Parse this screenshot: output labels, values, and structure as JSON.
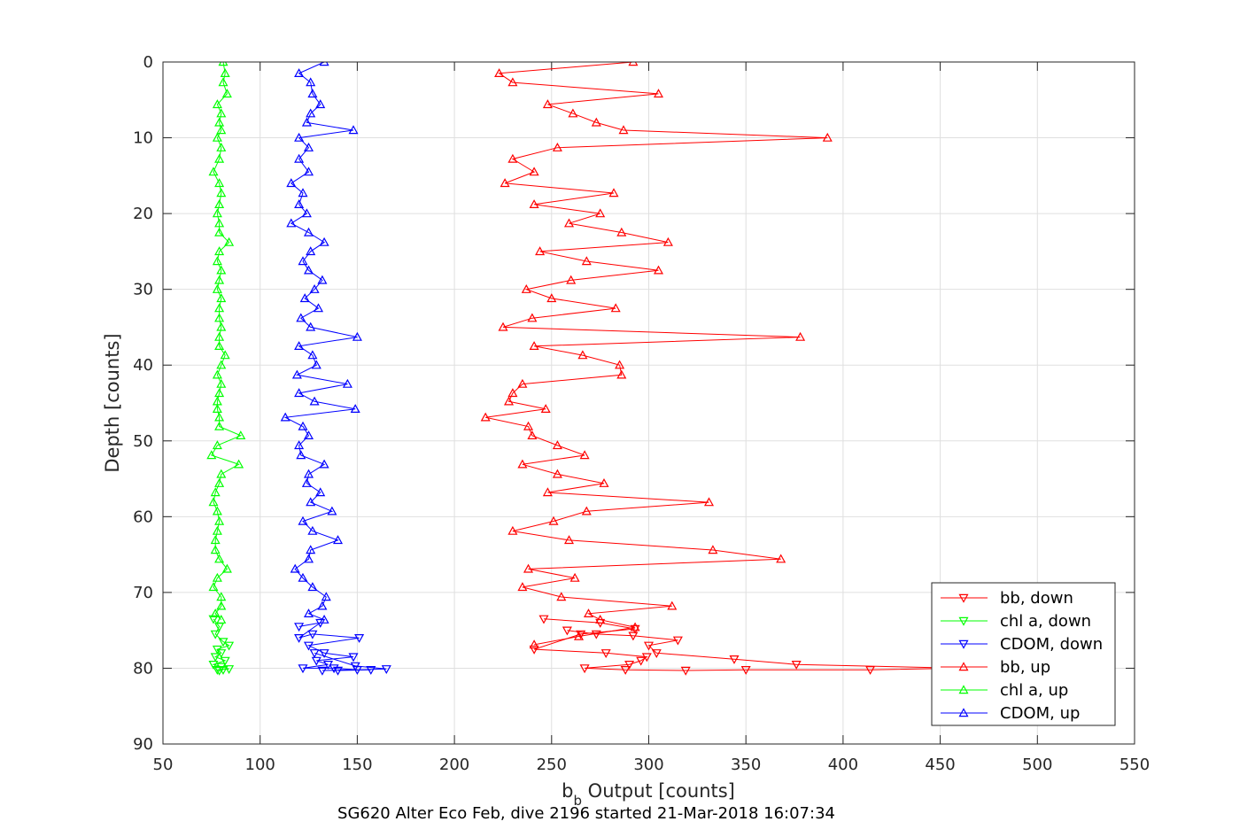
{
  "chart_data": {
    "type": "line",
    "xlabel_main": "b",
    "xlabel_sub": "b",
    "xlabel_rest": " Output [counts]",
    "ylabel": "Depth [counts]",
    "caption": "SG620 Alter Eco Feb, dive 2196 started 21-Mar-2018 16:07:34",
    "xlim": [
      50,
      550
    ],
    "ylim": [
      0,
      90
    ],
    "y_reversed": true,
    "grid": true,
    "legend_position": "bottom-right",
    "xticks": [
      "50",
      "100",
      "150",
      "200",
      "250",
      "300",
      "350",
      "400",
      "450",
      "500",
      "550"
    ],
    "yticks": [
      "0",
      "10",
      "20",
      "30",
      "40",
      "50",
      "60",
      "70",
      "80",
      "90"
    ],
    "colors": {
      "bb": "#ff0000",
      "chl": "#00ff00",
      "cdom": "#0000ff"
    },
    "series": [
      {
        "name": "bb, down",
        "color": "#ff0000",
        "marker": "triangle-down",
        "x": [
          246,
          275,
          293,
          265,
          241,
          278,
          299,
          296,
          290,
          267,
          288,
          319,
          350,
          414,
          460,
          376,
          344,
          304,
          300,
          315,
          292,
          273,
          258
        ],
        "y": [
          73.5,
          74,
          74.8,
          75.5,
          77.5,
          78,
          78.5,
          79,
          79.5,
          80,
          80.2,
          80.3,
          80.2,
          80.2,
          80,
          79.5,
          78.8,
          78,
          77,
          76.3,
          75.7,
          75.5,
          75
        ]
      },
      {
        "name": "chl a, down",
        "color": "#00ff00",
        "marker": "triangle-down",
        "x": [
          76,
          79,
          77,
          81,
          84,
          78,
          80,
          77,
          82,
          76,
          80,
          84,
          78,
          79,
          81
        ],
        "y": [
          73.5,
          74.5,
          75.5,
          76.5,
          77,
          77.5,
          78,
          78.5,
          79,
          79.5,
          79.8,
          80.1,
          80.2,
          80.3,
          80.2
        ]
      },
      {
        "name": "CDOM, down",
        "color": "#0000ff",
        "marker": "triangle-down",
        "x": [
          120,
          131,
          120,
          127,
          151,
          125,
          133,
          148,
          129,
          135,
          122,
          138,
          150,
          132,
          157,
          140,
          165,
          149,
          128
        ],
        "y": [
          74.5,
          74,
          76,
          75.5,
          76,
          77,
          78,
          78.5,
          79,
          79.5,
          80,
          80,
          80.2,
          80.3,
          80.2,
          80.3,
          80.1,
          79.7,
          78
        ]
      },
      {
        "name": "bb, up",
        "color": "#ff0000",
        "marker": "triangle-up",
        "x": [
          292,
          223,
          230,
          305,
          248,
          261,
          273,
          287,
          392,
          253,
          230,
          241,
          226,
          282,
          241,
          275,
          259,
          286,
          310,
          244,
          268,
          305,
          260,
          237,
          250,
          283,
          240,
          225,
          378,
          241,
          266,
          285,
          286,
          235,
          230,
          228,
          247,
          216,
          238,
          240,
          253,
          267,
          235,
          253,
          277,
          248,
          331,
          268,
          251,
          230,
          259,
          333,
          368,
          238,
          262,
          235,
          255,
          312,
          269,
          275,
          293,
          264,
          241
        ],
        "y": [
          0,
          1.5,
          2.7,
          4.2,
          5.6,
          6.8,
          8,
          9,
          10,
          11.3,
          12.8,
          14.5,
          16,
          17.3,
          18.8,
          20,
          21.3,
          22.5,
          23.8,
          25,
          26.3,
          27.5,
          28.8,
          30,
          31.2,
          32.5,
          33.8,
          35,
          36.3,
          37.5,
          38.7,
          40,
          41.3,
          42.5,
          43.7,
          44.8,
          45.8,
          46.9,
          48.1,
          49.3,
          50.6,
          51.9,
          53.1,
          54.4,
          55.6,
          56.8,
          58.1,
          59.3,
          60.6,
          61.9,
          63.1,
          64.4,
          65.6,
          66.9,
          68.1,
          69.3,
          70.6,
          71.8,
          72.8,
          73.6,
          74.6,
          75.8,
          76.9
        ]
      },
      {
        "name": "chl a, up",
        "color": "#00ff00",
        "marker": "triangle-up",
        "x": [
          81,
          82,
          81,
          83,
          78,
          80,
          79,
          80,
          78,
          80,
          79,
          76,
          79,
          80,
          79,
          78,
          79,
          79,
          84,
          79,
          78,
          80,
          79,
          78,
          80,
          79,
          79,
          80,
          79,
          79,
          82,
          80,
          78,
          80,
          79,
          78,
          78,
          79,
          79,
          90,
          78,
          75,
          89,
          80,
          79,
          77,
          76,
          78,
          79,
          78,
          77,
          77,
          79,
          83,
          78,
          76,
          80,
          80,
          77,
          80
        ],
        "y": [
          0,
          1.5,
          2.7,
          4.2,
          5.6,
          6.8,
          8,
          9,
          10,
          11.3,
          12.8,
          14.5,
          16,
          17.3,
          18.8,
          20,
          21.3,
          22.5,
          23.8,
          25,
          26.3,
          27.5,
          28.8,
          30,
          31.2,
          32.5,
          33.8,
          35,
          36.3,
          37.5,
          38.7,
          40,
          41.3,
          42.5,
          43.7,
          44.8,
          45.8,
          46.9,
          48.1,
          49.3,
          50.6,
          51.9,
          53.1,
          54.4,
          55.6,
          56.8,
          58.1,
          59.3,
          60.6,
          61.9,
          63.1,
          64.4,
          65.6,
          66.9,
          68.1,
          69.3,
          70.6,
          71.8,
          72.8,
          73.6
        ]
      },
      {
        "name": "CDOM, up",
        "color": "#0000ff",
        "marker": "triangle-up",
        "x": [
          133,
          120,
          126,
          127,
          131,
          126,
          124,
          148,
          120,
          125,
          120,
          125,
          116,
          122,
          120,
          124,
          116,
          125,
          133,
          126,
          122,
          125,
          132,
          128,
          123,
          130,
          121,
          126,
          150,
          120,
          127,
          129,
          119,
          145,
          120,
          128,
          149,
          113,
          122,
          125,
          120,
          121,
          133,
          125,
          124,
          131,
          126,
          137,
          122,
          127,
          140,
          126,
          125,
          118,
          122,
          127,
          134,
          132,
          125,
          133
        ],
        "y": [
          0,
          1.5,
          2.7,
          4.2,
          5.6,
          6.8,
          8,
          9,
          10,
          11.3,
          12.8,
          14.5,
          16,
          17.3,
          18.8,
          20,
          21.3,
          22.5,
          23.8,
          25,
          26.3,
          27.5,
          28.8,
          30,
          31.2,
          32.5,
          33.8,
          35,
          36.3,
          37.5,
          38.7,
          40,
          41.3,
          42.5,
          43.7,
          44.8,
          45.8,
          46.9,
          48.1,
          49.3,
          50.6,
          51.9,
          53.1,
          54.4,
          55.6,
          56.8,
          58.1,
          59.3,
          60.6,
          61.9,
          63.1,
          64.4,
          65.6,
          66.9,
          68.1,
          69.3,
          70.6,
          71.8,
          72.8,
          73.6
        ]
      }
    ]
  }
}
